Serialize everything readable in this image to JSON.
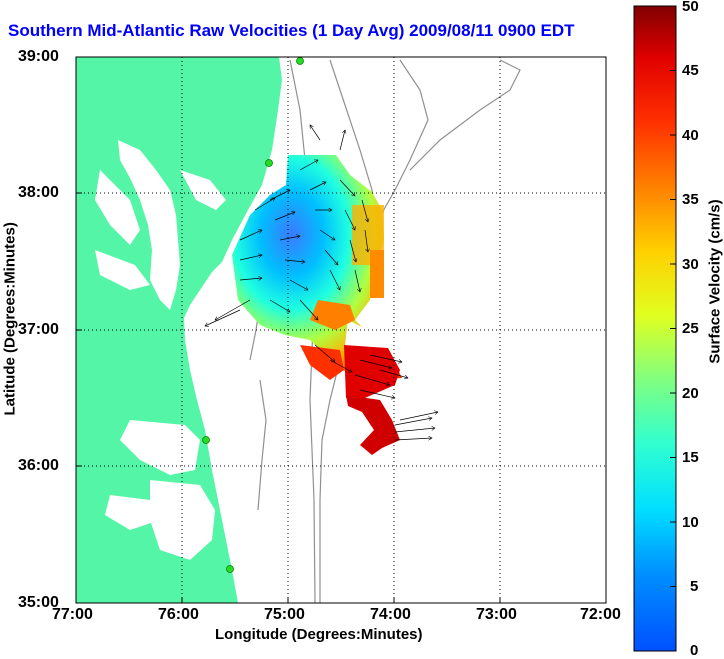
{
  "title": "Southern Mid-Atlantic Raw Velocities (1 Day Avg) 2009/08/11 0900 EDT",
  "axes": {
    "x_label": "Longitude (Degrees:Minutes)",
    "y_label": "Latitude (Degrees:Minutes)",
    "x_ticks": [
      "77:00",
      "76:00",
      "75:00",
      "74:00",
      "73:00",
      "72:00"
    ],
    "y_ticks": [
      "39:00",
      "38:00",
      "37:00",
      "36:00",
      "35:00"
    ]
  },
  "colorbar": {
    "label": "Surface Velocity (cm/s)",
    "ticks": [
      "50",
      "45",
      "40",
      "35",
      "30",
      "25",
      "20",
      "15",
      "10",
      "5",
      "0"
    ],
    "min": 0,
    "max": 50
  },
  "colors": {
    "title": "#0000ff",
    "land": "#55f5a8",
    "low_speed": "#0050ff",
    "high_speed": "#8b0000"
  },
  "map": {
    "lon_range": [
      -77,
      -72
    ],
    "lat_range": [
      35,
      39
    ],
    "grid": "dotted"
  }
}
